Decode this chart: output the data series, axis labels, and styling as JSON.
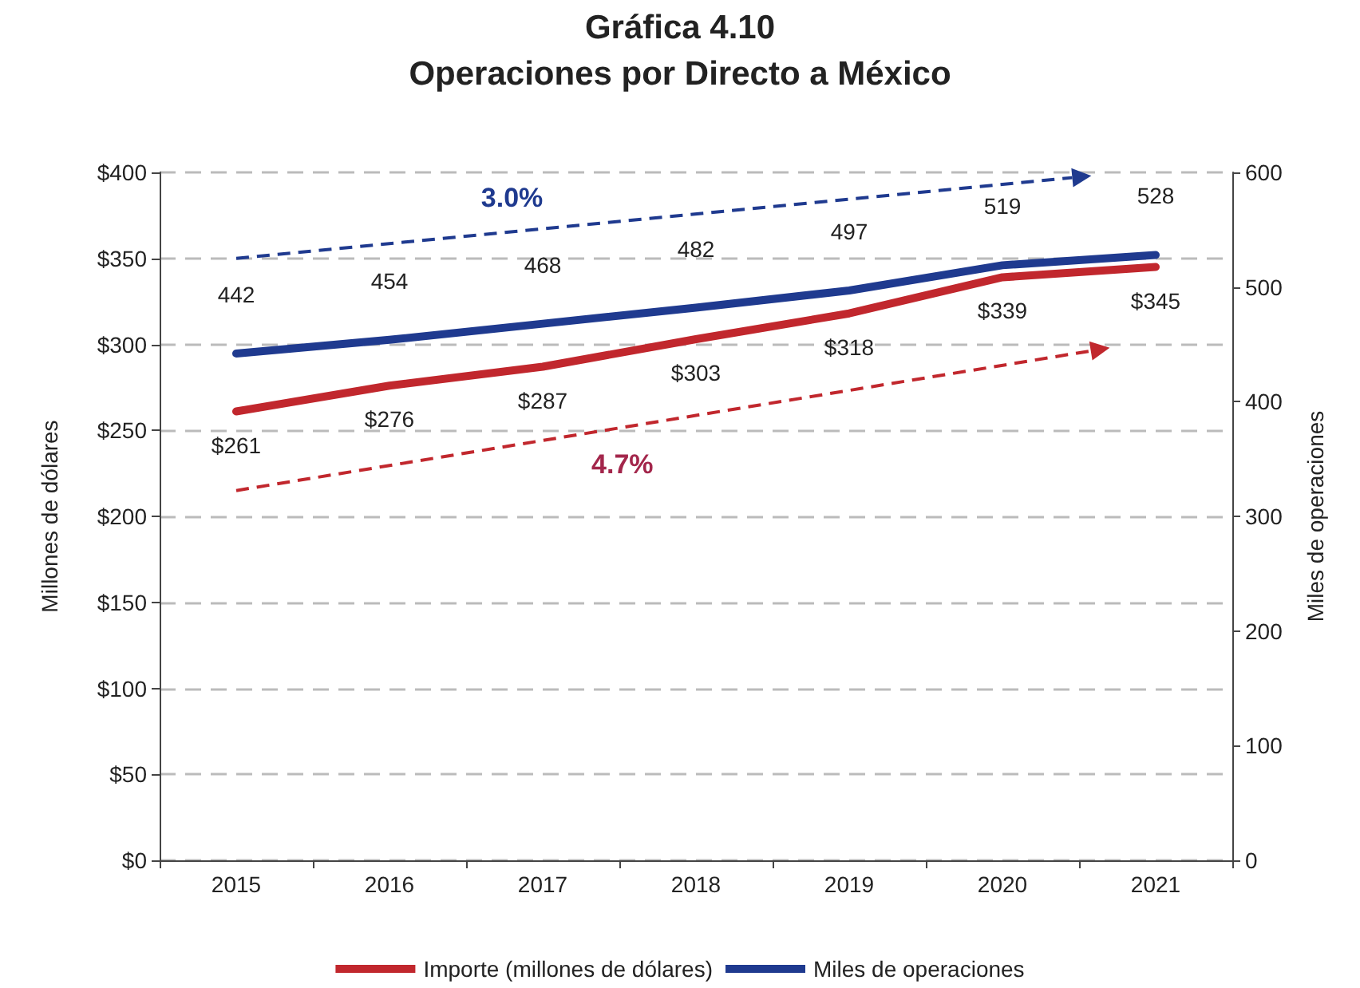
{
  "chart_data": {
    "type": "line",
    "title": "Gráfica 4.10",
    "subtitle": "Operaciones por Directo a México",
    "ylabel": "Millones de dólares",
    "y2label": "Miles de operaciones",
    "categories": [
      "2015",
      "2016",
      "2017",
      "2018",
      "2019",
      "2020",
      "2021"
    ],
    "series": [
      {
        "name": "Importe (millones de dólares)",
        "color": "#c1272d",
        "values": [
          261,
          276,
          287,
          303,
          318,
          339,
          345
        ],
        "value_labels": [
          "$261",
          "$276",
          "$287",
          "$303",
          "$318",
          "$339",
          "$345"
        ]
      },
      {
        "name": "Miles de operaciones",
        "color": "#1f3a8f",
        "axis": "y2",
        "values": [
          442,
          454,
          468,
          482,
          497,
          519,
          528
        ],
        "value_labels": [
          "442",
          "454",
          "468",
          "482",
          "497",
          "519",
          "528"
        ]
      }
    ],
    "ylim": [
      0,
      400
    ],
    "yticks": [
      {
        "value": 0,
        "label": "$0"
      },
      {
        "value": 50,
        "label": "$50"
      },
      {
        "value": 100,
        "label": "$100"
      },
      {
        "value": 150,
        "label": "$150"
      },
      {
        "value": 200,
        "label": "$200"
      },
      {
        "value": 250,
        "label": "$250"
      },
      {
        "value": 300,
        "label": "$300"
      },
      {
        "value": 350,
        "label": "$350"
      },
      {
        "value": 400,
        "label": "$400"
      }
    ],
    "y2lim": [
      0,
      600
    ],
    "y2ticks": [
      0,
      100,
      200,
      300,
      400,
      500,
      600
    ],
    "annotations": [
      "3.0%",
      "4.7%"
    ],
    "grid": "y",
    "legend": "bottom",
    "marker": "none",
    "line_style": "solid"
  }
}
